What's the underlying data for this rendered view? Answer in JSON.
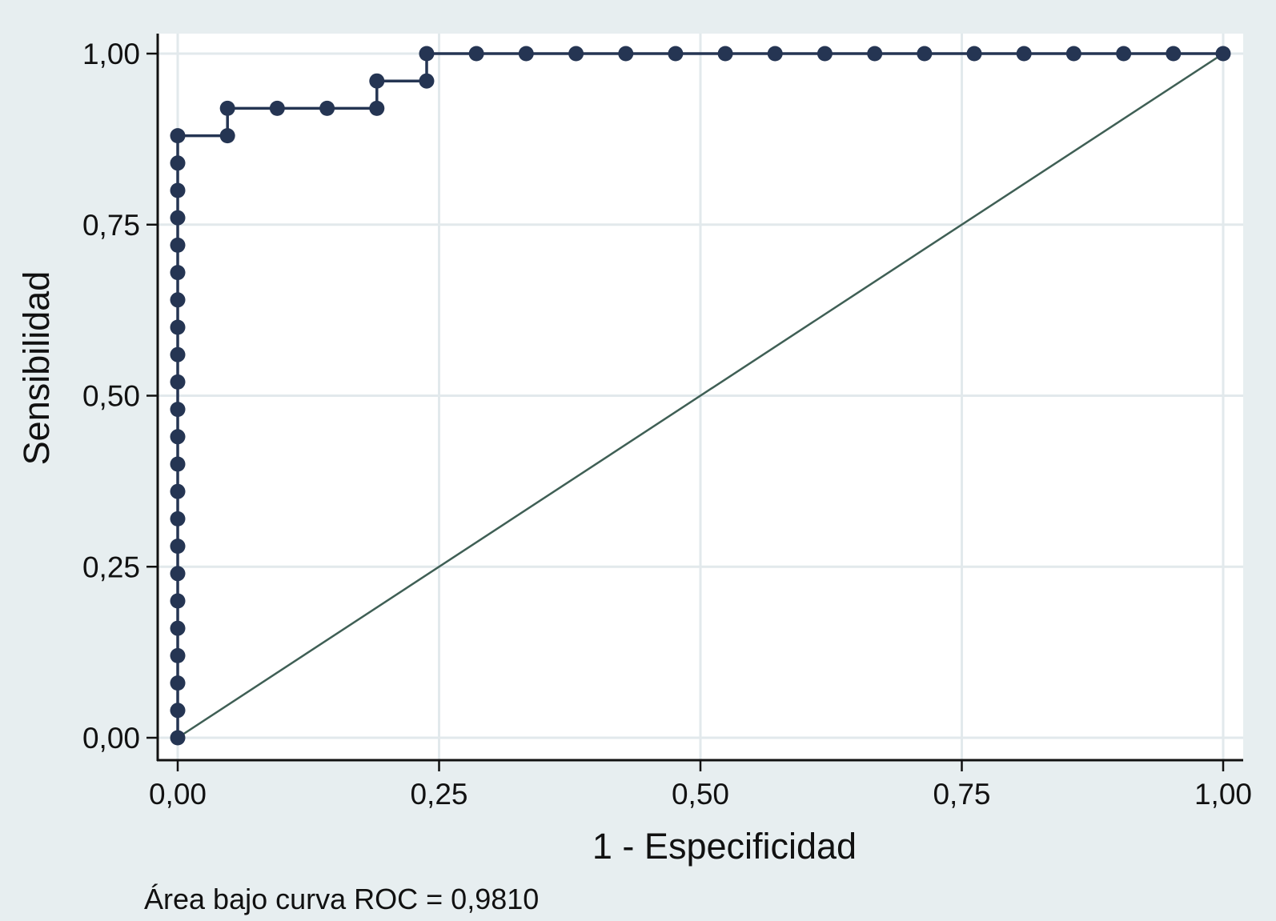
{
  "chart_data": {
    "type": "line",
    "title": "",
    "xlabel": "1 - Especificidad",
    "ylabel": "Sensibilidad",
    "xlim": [
      0,
      1
    ],
    "ylim": [
      0,
      1
    ],
    "grid": true,
    "x_ticks": [
      {
        "value": 0.0,
        "label": "0,00"
      },
      {
        "value": 0.25,
        "label": "0,25"
      },
      {
        "value": 0.5,
        "label": "0,50"
      },
      {
        "value": 0.75,
        "label": "0,75"
      },
      {
        "value": 1.0,
        "label": "1,00"
      }
    ],
    "y_ticks": [
      {
        "value": 0.0,
        "label": "0,00"
      },
      {
        "value": 0.25,
        "label": "0,25"
      },
      {
        "value": 0.5,
        "label": "0,50"
      },
      {
        "value": 0.75,
        "label": "0,75"
      },
      {
        "value": 1.0,
        "label": "1,00"
      }
    ],
    "series": [
      {
        "style": "step-markers",
        "color": "#253553",
        "points": [
          [
            0,
            0
          ],
          [
            0,
            0.04
          ],
          [
            0,
            0.08
          ],
          [
            0,
            0.12
          ],
          [
            0,
            0.16
          ],
          [
            0,
            0.2
          ],
          [
            0,
            0.24
          ],
          [
            0,
            0.28
          ],
          [
            0,
            0.32
          ],
          [
            0,
            0.36
          ],
          [
            0,
            0.4
          ],
          [
            0,
            0.44
          ],
          [
            0,
            0.48
          ],
          [
            0,
            0.52
          ],
          [
            0,
            0.56
          ],
          [
            0,
            0.6
          ],
          [
            0,
            0.64
          ],
          [
            0,
            0.68
          ],
          [
            0,
            0.72
          ],
          [
            0,
            0.76
          ],
          [
            0,
            0.8
          ],
          [
            0,
            0.84
          ],
          [
            0,
            0.88
          ],
          [
            0.0476,
            0.88
          ],
          [
            0.0476,
            0.92
          ],
          [
            0.0952,
            0.92
          ],
          [
            0.1429,
            0.92
          ],
          [
            0.1905,
            0.92
          ],
          [
            0.1905,
            0.96
          ],
          [
            0.2381,
            0.96
          ],
          [
            0.2381,
            1.0
          ],
          [
            0.2857,
            1.0
          ],
          [
            0.3333,
            1.0
          ],
          [
            0.381,
            1.0
          ],
          [
            0.4286,
            1.0
          ],
          [
            0.4762,
            1.0
          ],
          [
            0.5238,
            1.0
          ],
          [
            0.5714,
            1.0
          ],
          [
            0.619,
            1.0
          ],
          [
            0.6667,
            1.0
          ],
          [
            0.7143,
            1.0
          ],
          [
            0.7619,
            1.0
          ],
          [
            0.8095,
            1.0
          ],
          [
            0.8571,
            1.0
          ],
          [
            0.9048,
            1.0
          ],
          [
            0.9524,
            1.0
          ],
          [
            1.0,
            1.0
          ]
        ]
      },
      {
        "style": "reference-line",
        "color": "#3f5f55",
        "points": [
          [
            0,
            0
          ],
          [
            1,
            1
          ]
        ]
      }
    ],
    "annotations": [
      "Área bajo curva ROC = 0,9810"
    ]
  },
  "colors": {
    "background": "#e7eef0",
    "plot_background": "#ffffff",
    "grid": "#e2e9ec",
    "axis": "#111111"
  }
}
